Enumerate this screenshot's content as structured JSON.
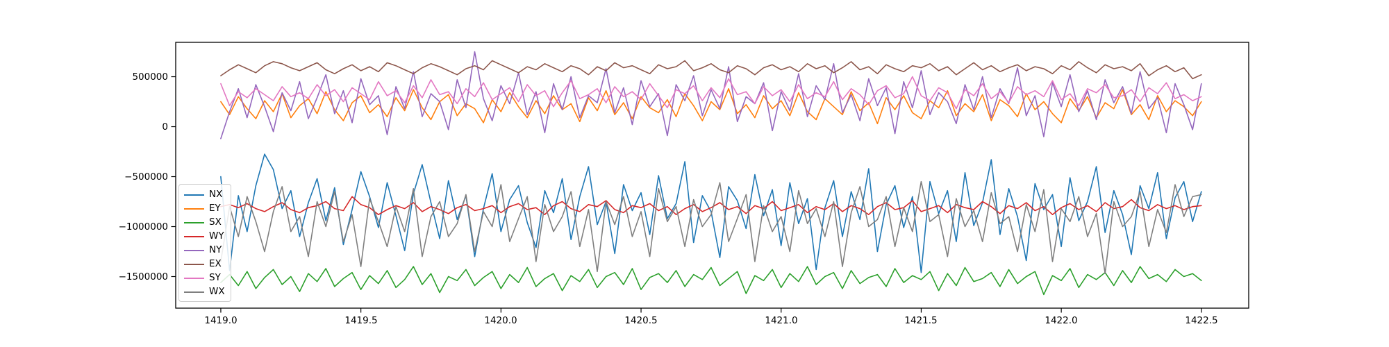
{
  "figure": {
    "background": "#ffffff"
  },
  "chart_data": {
    "type": "line",
    "title": "",
    "xlabel": "",
    "ylabel": "",
    "grid": false,
    "legend_position": "center-left",
    "x_start": 1419.0,
    "x_step": 0.03125,
    "n_points": 113,
    "xlim": [
      1418.839,
      1422.669
    ],
    "ylim": [
      -1816000,
      844000
    ],
    "xticks": [
      1419.0,
      1419.5,
      1420.0,
      1420.5,
      1421.0,
      1421.5,
      1422.0,
      1422.5
    ],
    "xtick_labels": [
      "1419.0",
      "1419.5",
      "1420.0",
      "1420.5",
      "1421.0",
      "1421.5",
      "1422.0",
      "1422.5"
    ],
    "yticks": [
      500000,
      0,
      -500000,
      -1000000,
      -1500000
    ],
    "ytick_labels": [
      "500000",
      "0",
      "−500000",
      "−1000000",
      "−1500000"
    ],
    "series": [
      {
        "name": "NX",
        "color": "#1f77b4",
        "values": [
          -500000,
          -1440000,
          -690000,
          -1050000,
          -590000,
          -275000,
          -430000,
          -820000,
          -640000,
          -1100000,
          -760000,
          -520000,
          -940000,
          -610000,
          -1180000,
          -830000,
          -450000,
          -700000,
          -1010000,
          -560000,
          -890000,
          -1240000,
          -670000,
          -380000,
          -760000,
          -1120000,
          -540000,
          -930000,
          -690000,
          -1300000,
          -820000,
          -470000,
          -1050000,
          -730000,
          -590000,
          -960000,
          -1210000,
          -640000,
          -860000,
          -520000,
          -1130000,
          -700000,
          -400000,
          -980000,
          -750000,
          -1270000,
          -580000,
          -840000,
          -660000,
          -1080000,
          -490000,
          -920000,
          -770000,
          -350000,
          -1160000,
          -690000,
          -850000,
          -1310000,
          -600000,
          -740000,
          -1020000,
          -480000,
          -890000,
          -630000,
          -1190000,
          -560000,
          -970000,
          -720000,
          -1430000,
          -810000,
          -540000,
          -1100000,
          -650000,
          -930000,
          -420000,
          -1250000,
          -780000,
          -590000,
          -1010000,
          -700000,
          -1460000,
          -550000,
          -870000,
          -640000,
          -1150000,
          -460000,
          -990000,
          -760000,
          -330000,
          -1080000,
          -620000,
          -900000,
          -1340000,
          -570000,
          -830000,
          -680000,
          -1200000,
          -510000,
          -940000,
          -750000,
          -400000,
          -1060000,
          -640000,
          -880000,
          -1280000,
          -590000,
          -820000,
          -460000,
          -1120000,
          -710000,
          -550000,
          -950000,
          -650000
        ]
      },
      {
        "name": "EY",
        "color": "#ff7f0e",
        "values": [
          250000,
          120000,
          300000,
          180000,
          80000,
          260000,
          150000,
          330000,
          90000,
          210000,
          280000,
          130000,
          350000,
          170000,
          60000,
          240000,
          310000,
          140000,
          220000,
          100000,
          290000,
          160000,
          370000,
          190000,
          70000,
          250000,
          320000,
          110000,
          230000,
          180000,
          40000,
          270000,
          150000,
          340000,
          200000,
          90000,
          260000,
          130000,
          310000,
          170000,
          230000,
          50000,
          290000,
          160000,
          360000,
          120000,
          240000,
          80000,
          300000,
          190000,
          140000,
          270000,
          100000,
          330000,
          210000,
          60000,
          250000,
          170000,
          380000,
          130000,
          220000,
          90000,
          310000,
          180000,
          260000,
          110000,
          340000,
          150000,
          70000,
          280000,
          200000,
          120000,
          350000,
          160000,
          240000,
          30000,
          290000,
          170000,
          310000,
          140000,
          80000,
          260000,
          190000,
          360000,
          110000,
          230000,
          150000,
          320000,
          60000,
          270000,
          210000,
          100000,
          330000,
          170000,
          250000,
          130000,
          40000,
          280000,
          160000,
          300000,
          90000,
          240000,
          180000,
          370000,
          120000,
          220000,
          70000,
          310000,
          150000,
          260000,
          200000,
          110000,
          250000
        ]
      },
      {
        "name": "SX",
        "color": "#2ca02c",
        "values": [
          -1560000,
          -1480000,
          -1590000,
          -1450000,
          -1620000,
          -1510000,
          -1430000,
          -1580000,
          -1500000,
          -1650000,
          -1470000,
          -1550000,
          -1420000,
          -1600000,
          -1520000,
          -1460000,
          -1630000,
          -1490000,
          -1570000,
          -1440000,
          -1610000,
          -1530000,
          -1400000,
          -1580000,
          -1470000,
          -1660000,
          -1500000,
          -1540000,
          -1430000,
          -1590000,
          -1510000,
          -1450000,
          -1620000,
          -1480000,
          -1560000,
          -1410000,
          -1600000,
          -1520000,
          -1470000,
          -1640000,
          -1490000,
          -1550000,
          -1430000,
          -1610000,
          -1500000,
          -1460000,
          -1580000,
          -1420000,
          -1630000,
          -1510000,
          -1470000,
          -1560000,
          -1440000,
          -1600000,
          -1480000,
          -1530000,
          -1410000,
          -1590000,
          -1520000,
          -1450000,
          -1670000,
          -1490000,
          -1540000,
          -1430000,
          -1610000,
          -1470000,
          -1550000,
          -1400000,
          -1580000,
          -1500000,
          -1460000,
          -1620000,
          -1440000,
          -1570000,
          -1510000,
          -1480000,
          -1600000,
          -1420000,
          -1560000,
          -1490000,
          -1530000,
          -1450000,
          -1640000,
          -1470000,
          -1590000,
          -1410000,
          -1550000,
          -1520000,
          -1460000,
          -1600000,
          -1430000,
          -1570000,
          -1500000,
          -1450000,
          -1680000,
          -1490000,
          -1540000,
          -1420000,
          -1610000,
          -1480000,
          -1530000,
          -1460000,
          -1590000,
          -1440000,
          -1560000,
          -1400000,
          -1520000,
          -1480000,
          -1550000,
          -1430000,
          -1500000,
          -1470000,
          -1540000
        ]
      },
      {
        "name": "WY",
        "color": "#d62728",
        "values": [
          -800000,
          -780000,
          -810000,
          -770000,
          -820000,
          -850000,
          -800000,
          -760000,
          -830000,
          -860000,
          -810000,
          -790000,
          -750000,
          -820000,
          -840000,
          -700000,
          -780000,
          -810000,
          -880000,
          -830000,
          -790000,
          -820000,
          -760000,
          -850000,
          -800000,
          -830000,
          -870000,
          -810000,
          -780000,
          -840000,
          -820000,
          -790000,
          -860000,
          -800000,
          -770000,
          -830000,
          -810000,
          -880000,
          -790000,
          -750000,
          -820000,
          -850000,
          -780000,
          -800000,
          -740000,
          -830000,
          -860000,
          -790000,
          -810000,
          -770000,
          -840000,
          -800000,
          -880000,
          -820000,
          -780000,
          -850000,
          -810000,
          -760000,
          -830000,
          -800000,
          -870000,
          -790000,
          -820000,
          -750000,
          -840000,
          -810000,
          -780000,
          -860000,
          -800000,
          -830000,
          -770000,
          -850000,
          -790000,
          -820000,
          -880000,
          -800000,
          -760000,
          -830000,
          -810000,
          -740000,
          -850000,
          -820000,
          -790000,
          -860000,
          -780000,
          -810000,
          -830000,
          -750000,
          -800000,
          -870000,
          -790000,
          -820000,
          -760000,
          -840000,
          -800000,
          -880000,
          -810000,
          -770000,
          -830000,
          -790000,
          -850000,
          -760000,
          -820000,
          -800000,
          -730000,
          -810000,
          -840000,
          -780000,
          -820000,
          -790000,
          -830000,
          -800000,
          -790000
        ]
      },
      {
        "name": "NY",
        "color": "#9467bd",
        "values": [
          -120000,
          150000,
          380000,
          90000,
          420000,
          200000,
          -50000,
          340000,
          160000,
          450000,
          80000,
          290000,
          520000,
          130000,
          360000,
          40000,
          480000,
          220000,
          310000,
          -80000,
          400000,
          180000,
          550000,
          100000,
          330000,
          250000,
          -30000,
          470000,
          190000,
          750000,
          280000,
          60000,
          410000,
          230000,
          540000,
          120000,
          350000,
          -60000,
          430000,
          170000,
          500000,
          90000,
          310000,
          240000,
          580000,
          140000,
          390000,
          20000,
          460000,
          200000,
          330000,
          -90000,
          420000,
          260000,
          510000,
          110000,
          370000,
          180000,
          600000,
          50000,
          300000,
          230000,
          440000,
          -40000,
          350000,
          160000,
          530000,
          100000,
          410000,
          270000,
          630000,
          140000,
          320000,
          60000,
          480000,
          210000,
          390000,
          -70000,
          450000,
          190000,
          560000,
          120000,
          340000,
          250000,
          30000,
          420000,
          170000,
          500000,
          90000,
          380000,
          230000,
          590000,
          110000,
          310000,
          -100000,
          440000,
          200000,
          520000,
          150000,
          360000,
          70000,
          470000,
          240000,
          400000,
          130000,
          550000,
          180000,
          290000,
          -60000,
          430000,
          220000,
          -30000,
          430000
        ]
      },
      {
        "name": "EX",
        "color": "#8c564b",
        "values": [
          510000,
          570000,
          620000,
          580000,
          540000,
          610000,
          650000,
          630000,
          590000,
          560000,
          600000,
          640000,
          570000,
          530000,
          580000,
          620000,
          560000,
          600000,
          550000,
          640000,
          610000,
          570000,
          530000,
          590000,
          630000,
          600000,
          560000,
          520000,
          580000,
          610000,
          570000,
          660000,
          620000,
          580000,
          540000,
          600000,
          570000,
          630000,
          590000,
          550000,
          610000,
          580000,
          520000,
          600000,
          560000,
          640000,
          590000,
          610000,
          570000,
          530000,
          620000,
          580000,
          600000,
          660000,
          560000,
          590000,
          630000,
          570000,
          540000,
          610000,
          580000,
          520000,
          590000,
          620000,
          570000,
          600000,
          550000,
          630000,
          580000,
          610000,
          540000,
          590000,
          650000,
          570000,
          600000,
          530000,
          620000,
          580000,
          550000,
          610000,
          590000,
          630000,
          560000,
          600000,
          520000,
          580000,
          640000,
          570000,
          610000,
          550000,
          590000,
          620000,
          560000,
          600000,
          580000,
          530000,
          610000,
          570000,
          650000,
          590000,
          540000,
          620000,
          580000,
          600000,
          560000,
          630000,
          510000,
          570000,
          610000,
          550000,
          590000,
          480000,
          520000
        ]
      },
      {
        "name": "SY",
        "color": "#e377c2",
        "values": [
          430000,
          210000,
          350000,
          290000,
          380000,
          320000,
          260000,
          400000,
          300000,
          340000,
          280000,
          420000,
          310000,
          370000,
          250000,
          390000,
          330000,
          270000,
          450000,
          310000,
          360000,
          240000,
          410000,
          290000,
          470000,
          320000,
          350000,
          230000,
          380000,
          300000,
          440000,
          270000,
          330000,
          390000,
          250000,
          420000,
          310000,
          360000,
          200000,
          340000,
          460000,
          280000,
          320000,
          380000,
          240000,
          400000,
          300000,
          350000,
          270000,
          430000,
          310000,
          190000,
          370000,
          330000,
          410000,
          260000,
          390000,
          290000,
          480000,
          320000,
          350000,
          230000,
          400000,
          310000,
          370000,
          250000,
          420000,
          280000,
          340000,
          300000,
          450000,
          270000,
          380000,
          320000,
          220000,
          360000,
          410000,
          290000,
          330000,
          500000,
          310000,
          260000,
          390000,
          340000,
          180000,
          370000,
          310000,
          430000,
          280000,
          350000,
          240000,
          400000,
          320000,
          360000,
          300000,
          460000,
          270000,
          330000,
          210000,
          380000,
          340000,
          420000,
          290000,
          310000,
          370000,
          250000,
          390000,
          330000,
          440000,
          280000,
          320000,
          260000,
          300000
        ]
      },
      {
        "name": "WX",
        "color": "#7f7f7f",
        "values": [
          -1350000,
          -800000,
          -1100000,
          -700000,
          -950000,
          -1250000,
          -850000,
          -600000,
          -1050000,
          -900000,
          -1300000,
          -750000,
          -1000000,
          -650000,
          -1150000,
          -880000,
          -1400000,
          -720000,
          -950000,
          -1200000,
          -800000,
          -1050000,
          -620000,
          -1300000,
          -900000,
          -750000,
          -1100000,
          -970000,
          -680000,
          -1250000,
          -850000,
          -1000000,
          -580000,
          -1150000,
          -920000,
          -700000,
          -1350000,
          -780000,
          -1050000,
          -900000,
          -650000,
          -1200000,
          -830000,
          -1450000,
          -750000,
          -980000,
          -700000,
          -1100000,
          -850000,
          -1300000,
          -620000,
          -950000,
          -800000,
          -1200000,
          -730000,
          -1000000,
          -880000,
          -560000,
          -1150000,
          -920000,
          -680000,
          -1350000,
          -790000,
          -1050000,
          -900000,
          -1250000,
          -640000,
          -970000,
          -820000,
          -1100000,
          -750000,
          -1400000,
          -860000,
          -600000,
          -1000000,
          -930000,
          -700000,
          -1200000,
          -810000,
          -1050000,
          -550000,
          -950000,
          -880000,
          -1300000,
          -720000,
          -1000000,
          -840000,
          -1150000,
          -660000,
          -970000,
          -900000,
          -1250000,
          -780000,
          -1050000,
          -630000,
          -1350000,
          -820000,
          -950000,
          -700000,
          -1100000,
          -870000,
          -1470000,
          -750000,
          -1000000,
          -900000,
          -650000,
          -1200000,
          -830000,
          -1060000,
          -580000,
          -900000,
          -700000,
          -680000
        ]
      }
    ]
  }
}
